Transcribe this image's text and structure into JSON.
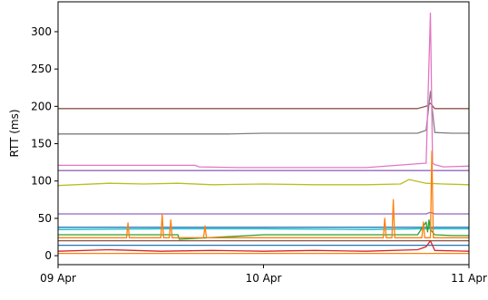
{
  "chart_data": {
    "type": "line",
    "title": "",
    "xlabel": "",
    "ylabel": "RTT (ms)",
    "grid": false,
    "legend": "none",
    "xlim": [
      "2023-04-09T00:00",
      "2023-04-11T00:00"
    ],
    "ylim": [
      -12,
      340
    ],
    "x_ticks": [
      {
        "label": "09 Apr",
        "value": "2023-04-09T00:00"
      },
      {
        "label": "10 Apr",
        "value": "2023-04-10T00:00"
      },
      {
        "label": "11 Apr",
        "value": "2023-04-11T00:00"
      }
    ],
    "y_ticks": [
      0,
      50,
      100,
      150,
      200,
      250,
      300
    ],
    "series": [
      {
        "color": "#8c564b",
        "x": [
          "2023-04-09T00:00",
          "2023-04-09T12:00",
          "2023-04-10T00:00",
          "2023-04-10T12:00",
          "2023-04-10T18:00",
          "2023-04-10T19:00",
          "2023-04-10T19:30",
          "2023-04-10T20:00",
          "2023-04-10T22:00",
          "2023-04-11T00:00"
        ],
        "values": [
          197,
          197,
          197,
          197,
          197,
          200,
          204,
          197,
          197,
          197
        ]
      },
      {
        "color": "#7f7f7f",
        "x": [
          "2023-04-09T00:00",
          "2023-04-09T12:00",
          "2023-04-09T20:00",
          "2023-04-10T00:00",
          "2023-04-10T12:00",
          "2023-04-10T18:00",
          "2023-04-10T19:00",
          "2023-04-10T19:30",
          "2023-04-10T20:00",
          "2023-04-10T22:00",
          "2023-04-11T00:00"
        ],
        "values": [
          163,
          163,
          163,
          164,
          164,
          164,
          168,
          220,
          165,
          164,
          164
        ]
      },
      {
        "color": "#e377c2",
        "x": [
          "2023-04-09T00:00",
          "2023-04-09T16:00",
          "2023-04-09T16:30",
          "2023-04-09T21:00",
          "2023-04-10T00:00",
          "2023-04-10T12:00",
          "2023-04-10T19:00",
          "2023-04-10T19:30",
          "2023-04-10T19:45",
          "2023-04-10T20:00",
          "2023-04-10T21:00",
          "2023-04-11T00:00"
        ],
        "values": [
          121,
          121,
          119,
          118,
          118,
          118,
          124,
          325,
          124,
          122,
          119,
          120
        ]
      },
      {
        "color": "#9467bd",
        "x": [
          "2023-04-09T00:00",
          "2023-04-10T00:00",
          "2023-04-10T12:00",
          "2023-04-10T20:00",
          "2023-04-11T00:00"
        ],
        "values": [
          114,
          114,
          114,
          114,
          114
        ]
      },
      {
        "color": "#bcbd22",
        "x": [
          "2023-04-09T00:00",
          "2023-04-09T02:00",
          "2023-04-09T06:00",
          "2023-04-09T10:00",
          "2023-04-09T14:00",
          "2023-04-09T18:00",
          "2023-04-10T00:00",
          "2023-04-10T06:00",
          "2023-04-10T12:00",
          "2023-04-10T16:00",
          "2023-04-10T17:00",
          "2023-04-10T19:00",
          "2023-04-10T21:00",
          "2023-04-11T00:00"
        ],
        "values": [
          94,
          95,
          97,
          96,
          97,
          95,
          96,
          95,
          95,
          96,
          102,
          97,
          96,
          95
        ]
      },
      {
        "color": "#9467bd",
        "x": [
          "2023-04-09T00:00",
          "2023-04-10T00:00",
          "2023-04-10T19:00",
          "2023-04-10T19:30",
          "2023-04-10T20:00",
          "2023-04-11T00:00"
        ],
        "values": [
          56,
          56,
          56,
          58,
          56,
          56
        ]
      },
      {
        "color": "#1f77b4",
        "x": [
          "2023-04-09T00:00",
          "2023-04-09T12:00",
          "2023-04-10T00:00",
          "2023-04-10T18:00",
          "2023-04-11T00:00"
        ],
        "values": [
          38,
          38,
          38,
          38,
          38
        ]
      },
      {
        "color": "#17becf",
        "x": [
          "2023-04-09T00:00",
          "2023-04-09T12:00",
          "2023-04-10T00:00",
          "2023-04-10T12:00",
          "2023-04-10T18:00",
          "2023-04-11T00:00"
        ],
        "values": [
          35,
          36,
          36,
          35,
          36,
          36
        ]
      },
      {
        "color": "#2ca02c",
        "x": [
          "2023-04-09T00:00",
          "2023-04-09T14:00",
          "2023-04-09T14:10",
          "2023-04-10T00:00",
          "2023-04-10T18:00",
          "2023-04-10T19:00",
          "2023-04-10T19:10",
          "2023-04-10T19:20",
          "2023-04-10T19:30",
          "2023-04-10T20:00",
          "2023-04-10T22:00",
          "2023-04-11T00:00"
        ],
        "values": [
          28,
          28,
          22,
          28,
          28,
          45,
          32,
          48,
          35,
          28,
          27,
          27
        ]
      },
      {
        "color": "#ff7f0e",
        "x": [
          "2023-04-09T00:00",
          "2023-04-09T08:00",
          "2023-04-09T08:10",
          "2023-04-09T08:20",
          "2023-04-09T12:00",
          "2023-04-09T12:10",
          "2023-04-09T12:20",
          "2023-04-09T13:00",
          "2023-04-09T13:10",
          "2023-04-09T13:20",
          "2023-04-09T17:00",
          "2023-04-09T17:10",
          "2023-04-09T17:20",
          "2023-04-10T00:00",
          "2023-04-10T14:00",
          "2023-04-10T14:10",
          "2023-04-10T14:20",
          "2023-04-10T15:00",
          "2023-04-10T15:10",
          "2023-04-10T15:20",
          "2023-04-10T18:30",
          "2023-04-10T18:40",
          "2023-04-10T18:50",
          "2023-04-10T19:30",
          "2023-04-10T19:40",
          "2023-04-10T19:50",
          "2023-04-11T00:00"
        ],
        "values": [
          24,
          24,
          44,
          24,
          24,
          55,
          24,
          24,
          48,
          24,
          24,
          40,
          24,
          24,
          24,
          50,
          24,
          24,
          75,
          24,
          24,
          45,
          24,
          24,
          140,
          24,
          24
        ]
      },
      {
        "color": "#8c564b",
        "x": [
          "2023-04-09T00:00",
          "2023-04-09T12:00",
          "2023-04-10T00:00",
          "2023-04-10T12:00",
          "2023-04-11T00:00"
        ],
        "values": [
          20,
          20,
          20,
          20,
          20
        ]
      },
      {
        "color": "#1f77b4",
        "x": [
          "2023-04-09T00:00",
          "2023-04-09T12:00",
          "2023-04-10T00:00",
          "2023-04-10T12:00",
          "2023-04-11T00:00"
        ],
        "values": [
          14,
          14,
          14,
          14,
          14
        ]
      },
      {
        "color": "#d62728",
        "x": [
          "2023-04-09T00:00",
          "2023-04-09T06:00",
          "2023-04-09T12:00",
          "2023-04-09T18:00",
          "2023-04-10T00:00",
          "2023-04-10T06:00",
          "2023-04-10T12:00",
          "2023-04-10T18:00",
          "2023-04-10T19:00",
          "2023-04-10T19:30",
          "2023-04-10T20:00",
          "2023-04-11T00:00"
        ],
        "values": [
          6,
          8,
          6,
          7,
          6,
          7,
          6,
          8,
          12,
          20,
          7,
          6
        ]
      },
      {
        "color": "#ff7f0e",
        "x": [
          "2023-04-09T00:00",
          "2023-04-09T12:00",
          "2023-04-10T00:00",
          "2023-04-10T12:00",
          "2023-04-11T00:00"
        ],
        "values": [
          3,
          3,
          3,
          3,
          3
        ]
      }
    ]
  }
}
